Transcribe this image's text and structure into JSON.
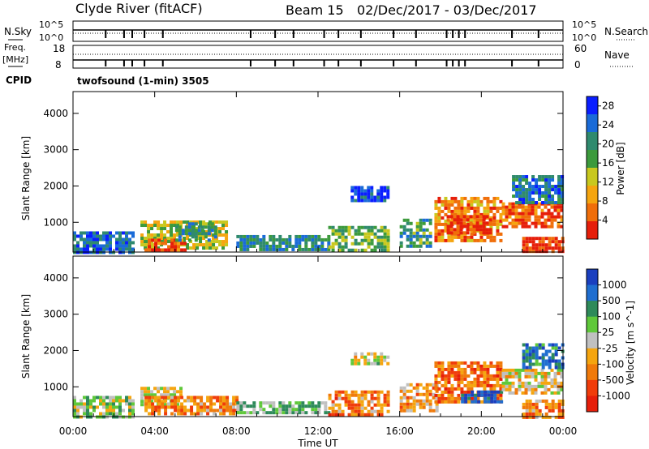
{
  "header": {
    "station": "Clyde River (fitACF)",
    "beam": "Beam 15",
    "daterange": "02/Dec/2017 - 03/Dec/2017"
  },
  "noise_panel": {
    "left_label": "N.Sky",
    "left_ticks": [
      "10^5",
      "10^0"
    ],
    "right_ticks": [
      "10^5",
      "10^0"
    ],
    "right_label": "N.Search"
  },
  "freq_panel": {
    "left_label_1": "Freq.",
    "left_label_2": "[MHz]",
    "left_ticks": [
      "18",
      "8"
    ],
    "right_ticks": [
      "60",
      "0"
    ],
    "right_label": "Nave"
  },
  "cpid": {
    "label": "CPID",
    "value": "twofsound (1-min) 3505"
  },
  "x_axis": {
    "label": "Time UT",
    "ticks": [
      "00:00",
      "04:00",
      "08:00",
      "12:00",
      "16:00",
      "20:00",
      "00:00"
    ],
    "range": [
      0,
      24
    ]
  },
  "chart_data": [
    {
      "type": "heatmap",
      "ylabel": "Slant Range [km]",
      "ylim": [
        180,
        4600
      ],
      "y_ticks": [
        "1000",
        "2000",
        "3000",
        "4000"
      ],
      "colorbar": {
        "label": "Power [dB]",
        "ticks": [
          "4",
          "8",
          "12",
          "16",
          "20",
          "24",
          "28"
        ],
        "range": [
          0,
          30
        ],
        "colors": [
          "#0a1eff",
          "#1a6bd8",
          "#2f8a6e",
          "#3c9a3c",
          "#c8c81e",
          "#f5a50f",
          "#f06e0a",
          "#e61e0a"
        ]
      },
      "regions": [
        {
          "t0": 0.0,
          "t1": 3.0,
          "r0": 200,
          "r1": 750,
          "level": 0.2
        },
        {
          "t0": 3.3,
          "t1": 7.5,
          "r0": 280,
          "r1": 1050,
          "level": 0.55
        },
        {
          "t0": 3.5,
          "t1": 5.5,
          "r0": 220,
          "r1": 550,
          "level": 0.9
        },
        {
          "t0": 5.0,
          "t1": 7.0,
          "r0": 500,
          "r1": 1000,
          "level": 0.35
        },
        {
          "t0": 8.0,
          "t1": 12.5,
          "r0": 250,
          "r1": 650,
          "level": 0.3
        },
        {
          "t0": 12.5,
          "t1": 15.5,
          "r0": 250,
          "r1": 900,
          "level": 0.45
        },
        {
          "t0": 13.6,
          "t1": 15.4,
          "r0": 1600,
          "r1": 2000,
          "level": 0.12
        },
        {
          "t0": 16.0,
          "t1": 17.5,
          "r0": 300,
          "r1": 1100,
          "level": 0.35
        },
        {
          "t0": 17.7,
          "t1": 21.0,
          "r0": 500,
          "r1": 1700,
          "level": 0.75
        },
        {
          "t0": 18.3,
          "t1": 20.5,
          "r0": 700,
          "r1": 1200,
          "level": 0.95
        },
        {
          "t0": 21.0,
          "t1": 24.0,
          "r0": 850,
          "r1": 1550,
          "level": 0.85
        },
        {
          "t0": 22.0,
          "t1": 24.0,
          "r0": 200,
          "r1": 600,
          "level": 0.95
        },
        {
          "t0": 21.5,
          "t1": 24.0,
          "r0": 1500,
          "r1": 2300,
          "level": 0.25
        }
      ]
    },
    {
      "type": "heatmap",
      "ylabel": "Slant Range [km]",
      "ylim": [
        180,
        4600
      ],
      "y_ticks": [
        "1000",
        "2000",
        "3000",
        "4000"
      ],
      "colorbar": {
        "label": "Velocity [m s^-1]",
        "ticks": [
          "1000",
          "500",
          "100",
          "25",
          "-25",
          "-100",
          "-500",
          "-1000"
        ],
        "range": [
          -1000,
          1000
        ],
        "colors": [
          "#1a3fbf",
          "#1f6ed0",
          "#2e8a5a",
          "#5fc83a",
          "#c0c0c0",
          "#f5a50f",
          "#f07a0a",
          "#f03c0a",
          "#e61e0a"
        ]
      },
      "regions": [
        {
          "t0": 0.0,
          "t1": 3.0,
          "r0": 200,
          "r1": 750,
          "level": 0.45
        },
        {
          "t0": 3.3,
          "t1": 5.3,
          "r0": 550,
          "r1": 1000,
          "level": 0.5
        },
        {
          "t0": 3.5,
          "t1": 8.0,
          "r0": 280,
          "r1": 750,
          "level": 0.7
        },
        {
          "t0": 8.0,
          "t1": 12.5,
          "r0": 250,
          "r1": 600,
          "level": 0.4
        },
        {
          "t0": 12.5,
          "t1": 15.5,
          "r0": 250,
          "r1": 900,
          "level": 0.72
        },
        {
          "t0": 13.6,
          "t1": 15.4,
          "r0": 1600,
          "r1": 1950,
          "level": 0.5
        },
        {
          "t0": 16.0,
          "t1": 17.8,
          "r0": 300,
          "r1": 1100,
          "level": 0.65
        },
        {
          "t0": 17.7,
          "t1": 21.0,
          "r0": 600,
          "r1": 1700,
          "level": 0.75
        },
        {
          "t0": 19.0,
          "t1": 21.0,
          "r0": 600,
          "r1": 900,
          "level": 0.1
        },
        {
          "t0": 21.0,
          "t1": 24.0,
          "r0": 850,
          "r1": 1500,
          "level": 0.55
        },
        {
          "t0": 22.0,
          "t1": 24.0,
          "r0": 200,
          "r1": 650,
          "level": 0.7
        },
        {
          "t0": 22.0,
          "t1": 24.0,
          "r0": 1500,
          "r1": 2200,
          "level": 0.2
        }
      ]
    }
  ]
}
